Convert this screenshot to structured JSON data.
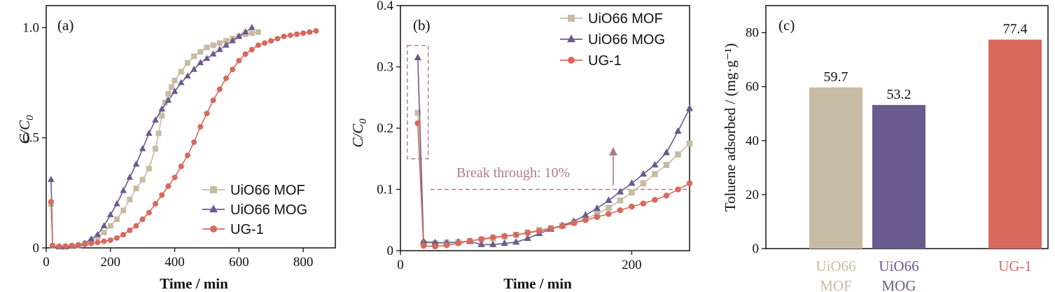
{
  "colors": {
    "mof": "#c8bba3",
    "mog": "#6b5a8e",
    "ug1": "#d8695d",
    "annotation": "#b07a8e"
  },
  "chart_data": [
    {
      "type": "line",
      "panel": "(a)",
      "xlabel": "Time / min",
      "ylabel_main": "C/C",
      "ylabel_sub": "0",
      "xlim": [
        0,
        900
      ],
      "ylim": [
        0,
        1.1
      ],
      "xticks": [
        "0",
        "200",
        "400",
        "600",
        "800"
      ],
      "yticks": [
        "0",
        "0.5",
        "1.0"
      ],
      "legend": "bottom-right",
      "series": [
        {
          "name": "UiO66 MOF",
          "marker": "square",
          "color": "mof",
          "x": [
            15,
            20,
            40,
            60,
            80,
            100,
            120,
            140,
            160,
            180,
            200,
            220,
            240,
            260,
            280,
            300,
            320,
            340,
            350,
            360,
            370,
            380,
            390,
            400,
            420,
            440,
            460,
            480,
            500,
            520,
            540,
            560,
            580,
            600,
            620,
            640,
            660
          ],
          "y": [
            0.2,
            0.01,
            0.005,
            0.005,
            0.008,
            0.01,
            0.02,
            0.03,
            0.05,
            0.07,
            0.1,
            0.13,
            0.17,
            0.22,
            0.27,
            0.31,
            0.36,
            0.45,
            0.52,
            0.6,
            0.66,
            0.7,
            0.73,
            0.76,
            0.8,
            0.84,
            0.87,
            0.89,
            0.91,
            0.92,
            0.93,
            0.94,
            0.95,
            0.96,
            0.97,
            0.975,
            0.98
          ]
        },
        {
          "name": "UiO66 MOG",
          "marker": "triangle",
          "color": "mog",
          "x": [
            15,
            20,
            40,
            60,
            80,
            100,
            120,
            140,
            160,
            180,
            200,
            220,
            240,
            260,
            280,
            300,
            320,
            340,
            360,
            380,
            400,
            420,
            440,
            460,
            480,
            500,
            520,
            540,
            560,
            580,
            600,
            620,
            640
          ],
          "y": [
            0.31,
            0.01,
            0.005,
            0.005,
            0.008,
            0.012,
            0.02,
            0.04,
            0.06,
            0.1,
            0.15,
            0.2,
            0.26,
            0.32,
            0.38,
            0.45,
            0.52,
            0.58,
            0.63,
            0.67,
            0.71,
            0.75,
            0.78,
            0.81,
            0.84,
            0.86,
            0.88,
            0.9,
            0.92,
            0.94,
            0.96,
            0.98,
            1.0
          ]
        },
        {
          "name": "UG-1",
          "marker": "circle",
          "color": "ug1",
          "x": [
            15,
            20,
            40,
            60,
            80,
            100,
            120,
            140,
            160,
            180,
            200,
            220,
            240,
            260,
            280,
            300,
            320,
            340,
            360,
            380,
            400,
            420,
            440,
            460,
            480,
            500,
            520,
            540,
            560,
            580,
            600,
            620,
            640,
            660,
            680,
            700,
            720,
            740,
            760,
            780,
            800,
            820,
            840
          ],
          "y": [
            0.21,
            0.01,
            0.006,
            0.008,
            0.01,
            0.013,
            0.016,
            0.02,
            0.025,
            0.03,
            0.035,
            0.045,
            0.06,
            0.08,
            0.1,
            0.13,
            0.16,
            0.2,
            0.24,
            0.28,
            0.32,
            0.37,
            0.42,
            0.48,
            0.55,
            0.61,
            0.67,
            0.72,
            0.77,
            0.81,
            0.85,
            0.88,
            0.9,
            0.92,
            0.93,
            0.94,
            0.95,
            0.96,
            0.965,
            0.97,
            0.975,
            0.98,
            0.985
          ]
        }
      ]
    },
    {
      "type": "line",
      "panel": "(b)",
      "xlabel": "Time / min",
      "ylabel_main": "C/C",
      "ylabel_sub": "0",
      "xlim": [
        0,
        250
      ],
      "ylim": [
        0,
        0.4
      ],
      "xticks": [
        "0",
        "200"
      ],
      "yticks": [
        "0",
        "0.1",
        "0.2",
        "0.3",
        "0.4"
      ],
      "legend": "top-right",
      "annotation": "Break through: 10%",
      "breakthrough_level": 0.1,
      "series": [
        {
          "name": "UiO66 MOF",
          "marker": "square",
          "color": "mof",
          "x": [
            15,
            20,
            30,
            40,
            50,
            60,
            70,
            80,
            90,
            100,
            110,
            120,
            130,
            140,
            150,
            160,
            170,
            180,
            190,
            200,
            210,
            220,
            230,
            240,
            250
          ],
          "y": [
            0.225,
            0.013,
            0.012,
            0.013,
            0.014,
            0.016,
            0.018,
            0.02,
            0.023,
            0.026,
            0.03,
            0.034,
            0.037,
            0.041,
            0.046,
            0.052,
            0.06,
            0.07,
            0.082,
            0.095,
            0.11,
            0.125,
            0.14,
            0.157,
            0.175
          ]
        },
        {
          "name": "UiO66 MOG",
          "marker": "triangle",
          "color": "mog",
          "x": [
            15,
            20,
            30,
            40,
            50,
            60,
            70,
            80,
            90,
            100,
            110,
            120,
            130,
            140,
            150,
            160,
            170,
            180,
            190,
            200,
            210,
            220,
            230,
            240,
            250
          ],
          "y": [
            0.315,
            0.015,
            0.013,
            0.013,
            0.014,
            0.015,
            0.01,
            0.01,
            0.012,
            0.014,
            0.02,
            0.028,
            0.035,
            0.041,
            0.048,
            0.058,
            0.069,
            0.082,
            0.096,
            0.11,
            0.125,
            0.14,
            0.16,
            0.195,
            0.232
          ]
        },
        {
          "name": "UG-1",
          "marker": "circle",
          "color": "ug1",
          "x": [
            15,
            20,
            30,
            40,
            50,
            60,
            70,
            80,
            90,
            100,
            110,
            120,
            130,
            140,
            150,
            160,
            170,
            180,
            190,
            200,
            210,
            220,
            230,
            240,
            250
          ],
          "y": [
            0.208,
            0.008,
            0.007,
            0.009,
            0.012,
            0.016,
            0.019,
            0.022,
            0.024,
            0.026,
            0.029,
            0.032,
            0.036,
            0.04,
            0.045,
            0.05,
            0.055,
            0.06,
            0.066,
            0.072,
            0.077,
            0.083,
            0.09,
            0.1,
            0.11
          ]
        }
      ]
    },
    {
      "type": "bar",
      "panel": "(c)",
      "ylabel": "Toluene adsorbed / (mg·g⁻¹)",
      "ylim": [
        0,
        90
      ],
      "yticks": [
        "0",
        "20",
        "40",
        "60",
        "80"
      ],
      "categories": [
        [
          "UiO66",
          "MOF"
        ],
        [
          "UiO66",
          "MOG"
        ],
        [
          "UG-1"
        ]
      ],
      "category_colors": [
        "mof",
        "mog",
        "ug1"
      ],
      "values": [
        59.7,
        53.2,
        77.4
      ],
      "value_labels": [
        "59.7",
        "53.2",
        "77.4"
      ]
    }
  ]
}
